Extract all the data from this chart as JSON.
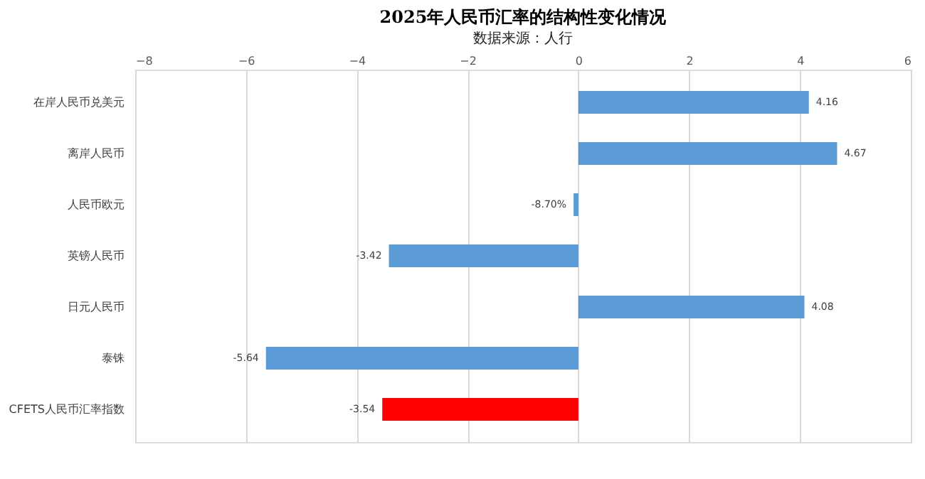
{
  "chart_data": {
    "type": "bar",
    "orientation": "horizontal",
    "title": "2025年人民币汇率的结构性变化情况",
    "subtitle": "数据来源：人行",
    "categories": [
      "在岸人民币兑美元",
      "离岸人民币",
      "人民币欧元",
      "英镑人民币",
      "日元人民币",
      "泰铢",
      "CFETS人民币汇率指数"
    ],
    "values": [
      4.16,
      4.67,
      -0.087,
      -3.42,
      4.08,
      -5.64,
      -3.54
    ],
    "value_labels": [
      "4.16",
      "4.67",
      "-8.70%",
      "-3.42",
      "4.08",
      "-5.64",
      "-3.54"
    ],
    "colors": [
      "#5b9bd5",
      "#5b9bd5",
      "#5b9bd5",
      "#5b9bd5",
      "#5b9bd5",
      "#5b9bd5",
      "#ff0000"
    ],
    "xlim": [
      -8,
      6
    ],
    "xticks": [
      -8,
      -6,
      -4,
      -2,
      0,
      2,
      4,
      6
    ],
    "grid": "x",
    "legend": false
  }
}
